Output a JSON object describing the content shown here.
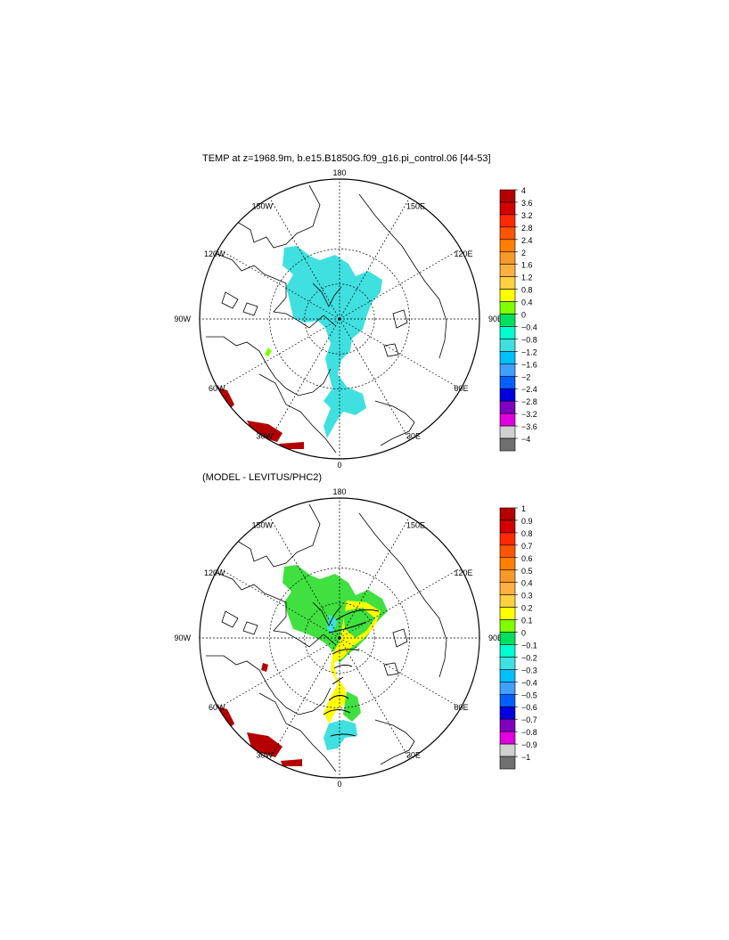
{
  "panels": [
    {
      "title": "TEMP at z=1968.9m, b.e15.B1850G.f09_g16.pi_control.06 [44-53]",
      "lon_labels": [
        "180",
        "150E",
        "120E",
        "90E",
        "60E",
        "30E",
        "0",
        "30W",
        "60W",
        "90W",
        "120W",
        "150W"
      ],
      "colorbar": {
        "labels": [
          "4",
          "3.6",
          "3.2",
          "2.8",
          "2.4",
          "2",
          "1.6",
          "1.2",
          "0.8",
          "0.4",
          "0",
          "−0.4",
          "−0.8",
          "−1.2",
          "−1.6",
          "−2",
          "−2.4",
          "−2.8",
          "−3.2",
          "−3.6",
          "−4"
        ],
        "colors": [
          "#b40000",
          "#d40000",
          "#ff2a00",
          "#ff5500",
          "#ff8000",
          "#f79a2a",
          "#ffb040",
          "#ffd040",
          "#ffff00",
          "#7fff00",
          "#00e060",
          "#00ffd0",
          "#40e0e0",
          "#00c0ff",
          "#40a0ff",
          "#0060ff",
          "#0000e0",
          "#8000c0",
          "#e000e0",
          "#d0d0d0",
          "#707070"
        ]
      }
    },
    {
      "title": "(MODEL - LEVITUS/PHC2)",
      "lon_labels": [
        "180",
        "150E",
        "120E",
        "90E",
        "60E",
        "30E",
        "0",
        "30W",
        "60W",
        "90W",
        "120W",
        "150W"
      ],
      "colorbar": {
        "labels": [
          "1",
          "0.9",
          "0.8",
          "0.7",
          "0.6",
          "0.5",
          "0.4",
          "0.3",
          "0.2",
          "0.1",
          "0",
          "−0.1",
          "−0.2",
          "−0.3",
          "−0.4",
          "−0.5",
          "−0.6",
          "−0.7",
          "−0.8",
          "−0.9",
          "−1"
        ],
        "colors": [
          "#b40000",
          "#d40000",
          "#ff2a00",
          "#ff5500",
          "#ff8000",
          "#f79a2a",
          "#ffb040",
          "#ffd040",
          "#ffff00",
          "#7fff00",
          "#00e060",
          "#00ffd0",
          "#40e0e0",
          "#00c0ff",
          "#40a0ff",
          "#0060ff",
          "#0000e0",
          "#8000c0",
          "#e000e0",
          "#d0d0d0",
          "#707070"
        ]
      }
    }
  ],
  "fill_colors": {
    "cyan": "#40e0e0",
    "green": "#7fff00",
    "green2": "#40e040",
    "yellow": "#ffff00",
    "darkred": "#b40000"
  }
}
